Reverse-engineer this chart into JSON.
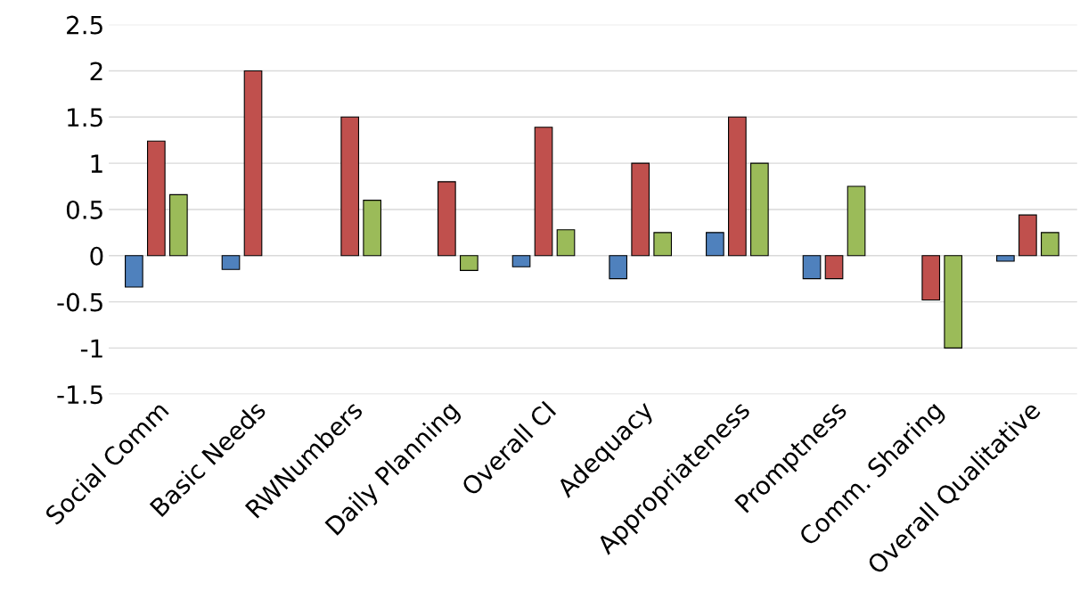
{
  "chart_data": {
    "type": "bar",
    "categories": [
      "Social Comm",
      "Basic Needs",
      "RWNumbers",
      "Daily Planning",
      "Overall CI",
      "Adequacy",
      "Appropriateness",
      "Promptness",
      "Comm. Sharing",
      "Overall Qualitative"
    ],
    "series": [
      {
        "color": "#4f81bd",
        "values": [
          -0.34,
          -0.15,
          null,
          null,
          -0.12,
          -0.25,
          0.25,
          -0.25,
          null,
          -0.06
        ]
      },
      {
        "color": "#c0504d",
        "values": [
          1.24,
          2.0,
          1.5,
          0.8,
          1.39,
          1.0,
          1.5,
          -0.25,
          -0.48,
          0.44
        ]
      },
      {
        "color": "#9bbb59",
        "values": [
          0.66,
          null,
          0.6,
          -0.16,
          0.28,
          0.25,
          1.0,
          0.75,
          -1.0,
          0.25
        ]
      }
    ],
    "ylim": [
      -1.5,
      2.5
    ],
    "yticks": [
      -1.5,
      -1,
      -0.5,
      0,
      0.5,
      1,
      1.5,
      2,
      2.5
    ],
    "grid": "y"
  }
}
